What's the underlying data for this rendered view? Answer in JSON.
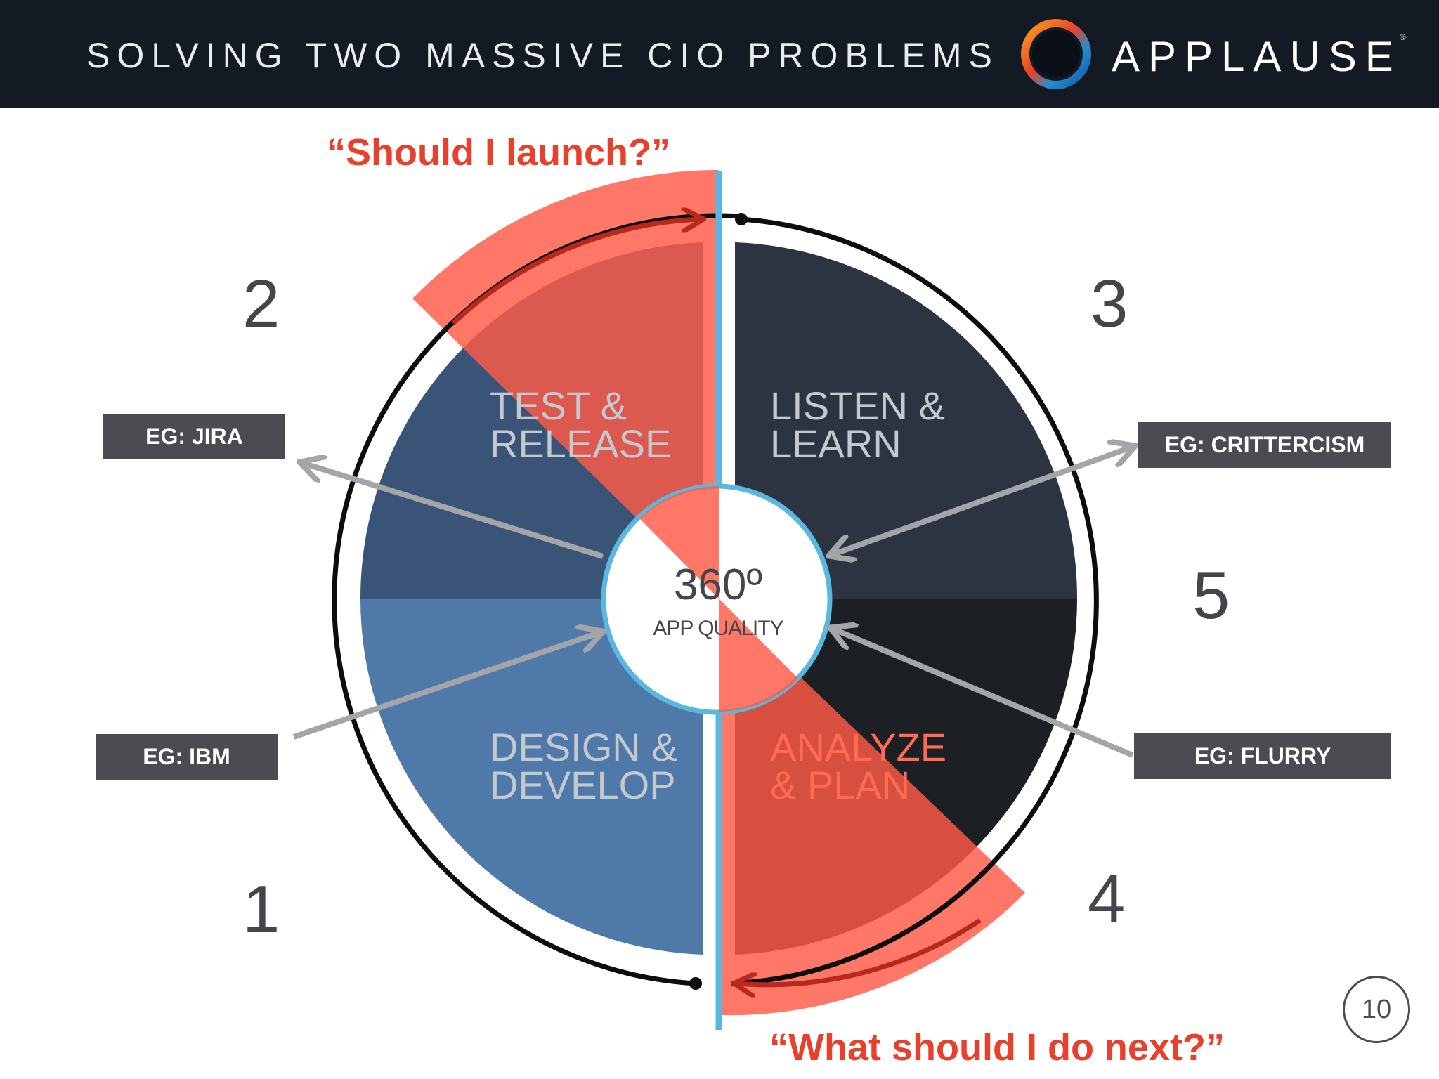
{
  "header": {
    "title": "SOLVING TWO MASSIVE CIO PROBLEMS",
    "brand": "APPLAUSE",
    "brand_mark": "®"
  },
  "questions": {
    "top": "“Should I launch?”",
    "bottom": "“What should I do next?”"
  },
  "center": {
    "value": "360º",
    "label": "APP QUALITY"
  },
  "segments": {
    "design": {
      "line1": "DESIGN &",
      "line2": "DEVELOP"
    },
    "test": {
      "line1": "TEST &",
      "line2": "RELEASE"
    },
    "listen": {
      "line1": "LISTEN &",
      "line2": "LEARN"
    },
    "analyze": {
      "line1": "ANALYZE",
      "line2": "& PLAN"
    }
  },
  "step_numbers": {
    "one": "1",
    "two": "2",
    "three": "3",
    "four": "4",
    "five": "5"
  },
  "examples": {
    "jira": "EG: JIRA",
    "ibm": "EG: IBM",
    "crittercism": "EG: CRITTERCISM",
    "flurry": "EG: FLURRY"
  },
  "page_number": "10",
  "colors": {
    "header_bg": "#141a23",
    "design": "#4f79a9",
    "test": "#3a5477",
    "listen": "#2b3440",
    "analyze": "#1c1f24",
    "highlight": "#ff6a55",
    "question_text": "#e8412b",
    "axis_line": "#5ab7e0"
  }
}
